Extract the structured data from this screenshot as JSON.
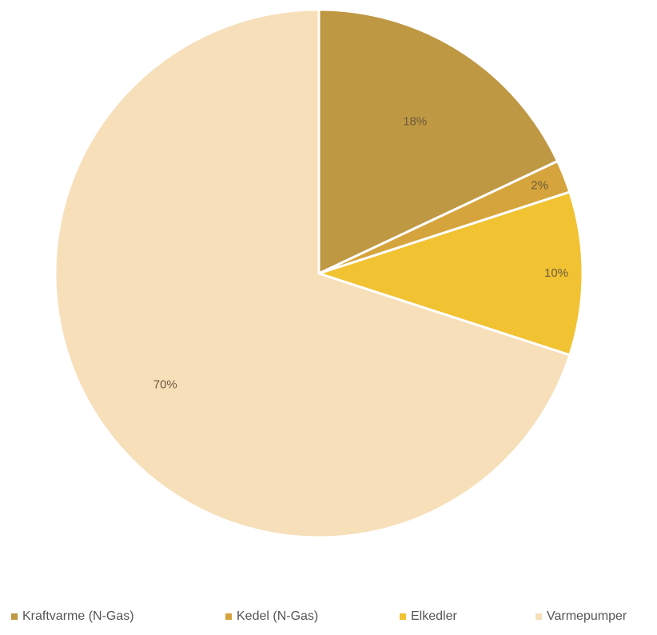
{
  "chart_data": {
    "type": "pie",
    "categories": [
      "Kraftvarme (N-Gas)",
      "Kedel (N-Gas)",
      "Elkedler",
      "Varmepumper"
    ],
    "values": [
      18,
      2,
      10,
      70
    ],
    "labels": [
      "18%",
      "2%",
      "10%",
      "70%"
    ],
    "colors": [
      "#bf9844",
      "#d6a43c",
      "#f1c232",
      "#f7dfba"
    ],
    "legend_position": "bottom",
    "start_angle_deg": 0,
    "direction": "clockwise"
  }
}
